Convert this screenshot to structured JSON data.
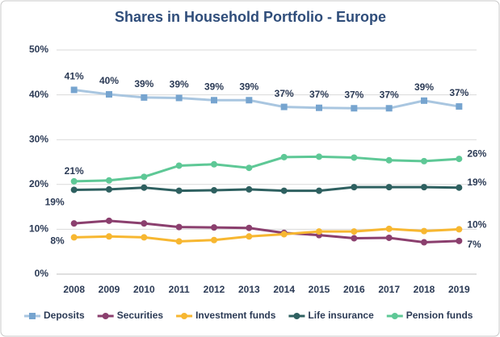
{
  "chart_data": {
    "type": "line",
    "title": "Shares in Household Portfolio - Europe",
    "categories": [
      "2008",
      "2009",
      "2010",
      "2011",
      "2012",
      "2013",
      "2014",
      "2015",
      "2016",
      "2017",
      "2018",
      "2019"
    ],
    "ylim": [
      0,
      50
    ],
    "yticks": [
      {
        "value": 0,
        "label": "0%"
      },
      {
        "value": 10,
        "label": "10%"
      },
      {
        "value": 20,
        "label": "20%"
      },
      {
        "value": 30,
        "label": "30%"
      },
      {
        "value": 40,
        "label": "40%"
      },
      {
        "value": 50,
        "label": "50%"
      }
    ],
    "grid": true,
    "legend": "bottom",
    "series": [
      {
        "name": "Deposits",
        "color": "#a9c6e0",
        "marker_color": "#76a4cf",
        "marker": "square",
        "values": [
          41.1,
          40.1,
          39.4,
          39.3,
          38.8,
          38.8,
          37.3,
          37.1,
          37.0,
          37.0,
          38.7,
          37.4
        ],
        "value_labels": [
          "41%",
          "40%",
          "39%",
          "39%",
          "39%",
          "39%",
          "37%",
          "37%",
          "37%",
          "37%",
          "39%",
          "37%"
        ]
      },
      {
        "name": "Securities",
        "color": "#8b3f6e",
        "marker_color": "#8b3f6e",
        "marker": "circle",
        "values": [
          11.3,
          11.9,
          11.3,
          10.5,
          10.4,
          10.3,
          9.2,
          8.7,
          8.0,
          8.1,
          7.1,
          7.4
        ],
        "value_labels": [
          null,
          null,
          null,
          null,
          null,
          null,
          null,
          null,
          null,
          null,
          null,
          "7%"
        ]
      },
      {
        "name": "Investment funds",
        "color": "#f7b731",
        "marker_color": "#f7b731",
        "marker": "circle",
        "values": [
          8.2,
          8.4,
          8.2,
          7.3,
          7.6,
          8.4,
          8.9,
          9.5,
          9.5,
          10.1,
          9.6,
          10.0
        ],
        "value_labels": [
          "8%",
          null,
          null,
          null,
          null,
          null,
          null,
          null,
          null,
          null,
          null,
          "10%"
        ]
      },
      {
        "name": "Life insurance",
        "color": "#2e6060",
        "marker_color": "#2e6060",
        "marker": "circle",
        "values": [
          18.8,
          18.9,
          19.3,
          18.6,
          18.7,
          18.9,
          18.6,
          18.6,
          19.4,
          19.4,
          19.4,
          19.3
        ],
        "value_labels": [
          "19%",
          null,
          null,
          null,
          null,
          null,
          null,
          null,
          null,
          null,
          null,
          "19%"
        ]
      },
      {
        "name": "Pension funds",
        "color": "#5ec896",
        "marker_color": "#5ec896",
        "marker": "circle",
        "values": [
          20.7,
          20.9,
          21.7,
          24.2,
          24.5,
          23.7,
          26.1,
          26.2,
          26.0,
          25.4,
          25.2,
          25.7
        ],
        "value_labels": [
          "21%",
          null,
          null,
          null,
          null,
          null,
          null,
          null,
          null,
          null,
          null,
          "26%"
        ]
      }
    ]
  }
}
